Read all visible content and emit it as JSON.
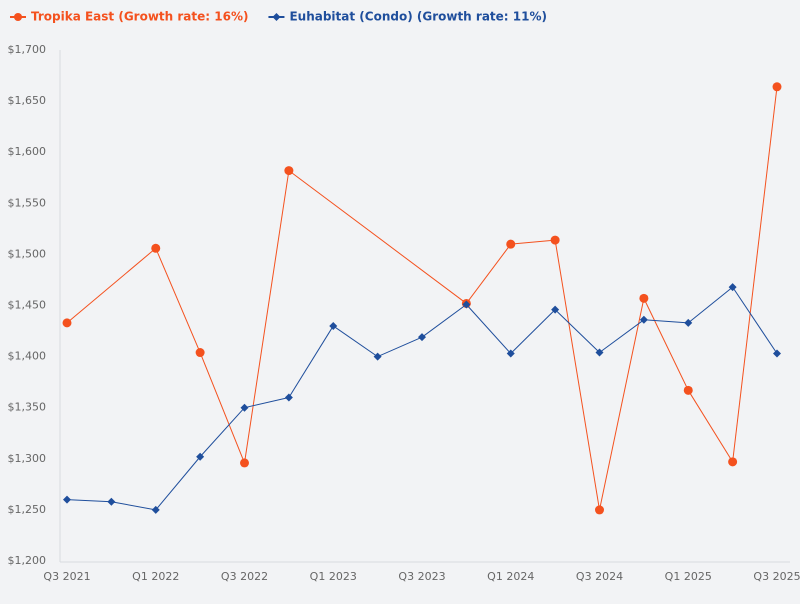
{
  "chart_data": {
    "type": "line",
    "categories": [
      "Q3 2021",
      null,
      "Q1 2022",
      null,
      "Q3 2022",
      null,
      "Q1 2023",
      null,
      "Q3 2023",
      null,
      "Q1 2024",
      null,
      "Q3 2024",
      null,
      "Q1 2025",
      null,
      "Q3 2025"
    ],
    "series": [
      {
        "name": "Tropika East (Growth rate: 16%)",
        "color": "#f4511e",
        "marker": "circle",
        "values": [
          1433,
          null,
          1506,
          1404,
          1296,
          1582,
          null,
          null,
          null,
          1452,
          1510,
          1514,
          1250,
          1457,
          1367,
          1297,
          1664
        ]
      },
      {
        "name": "Euhabitat (Condo) (Growth rate: 11%)",
        "color": "#1f4e9c",
        "marker": "diamond",
        "values": [
          1260,
          1258,
          1250,
          1302,
          1350,
          1360,
          1430,
          1400,
          1419,
          1451,
          1403,
          1446,
          1404,
          1436,
          1433,
          1468,
          1403
        ]
      }
    ],
    "ylim": [
      1200,
      1700
    ],
    "yticks": [
      {
        "value": 1200,
        "label": "$1,200"
      },
      {
        "value": 1250,
        "label": "$1,250"
      },
      {
        "value": 1300,
        "label": "$1,300"
      },
      {
        "value": 1350,
        "label": "$1,350"
      },
      {
        "value": 1400,
        "label": "$1,400"
      },
      {
        "value": 1450,
        "label": "$1,450"
      },
      {
        "value": 1500,
        "label": "$1,500"
      },
      {
        "value": 1550,
        "label": "$1,550"
      },
      {
        "value": 1600,
        "label": "$1,600"
      },
      {
        "value": 1650,
        "label": "$1,650"
      },
      {
        "value": 1700,
        "label": "$1,700"
      }
    ],
    "grid": false,
    "legend": "top-left"
  }
}
